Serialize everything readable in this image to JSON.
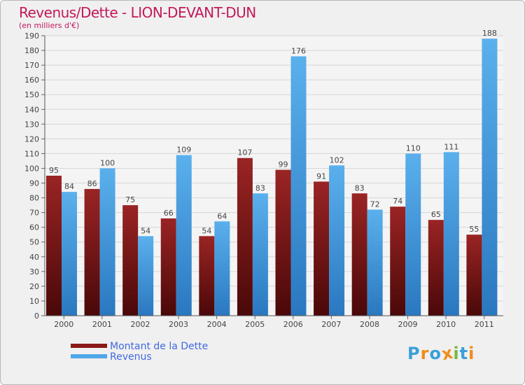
{
  "header": {
    "title": "Revenus/Dette - LION-DEVANT-DUN",
    "subtitle": "(en milliers d'€)"
  },
  "legend": [
    {
      "label": "Montant de la Dette",
      "color": "#8b1a1a"
    },
    {
      "label": "Revenus",
      "color": "#4fa8e8"
    }
  ],
  "logo": {
    "text": "Proxiti",
    "letters": [
      {
        "char": "P",
        "color": "#3aa0d8"
      },
      {
        "char": "r",
        "color": "#f08c1a"
      },
      {
        "char": "o",
        "color": "#3aa0d8"
      },
      {
        "char": "x",
        "color": "#f08c1a"
      },
      {
        "char": "i",
        "color": "#7ab648"
      },
      {
        "char": "t",
        "color": "#3aa0d8"
      },
      {
        "char": "i",
        "color": "#f08c1a"
      }
    ]
  },
  "chart_data": {
    "type": "bar",
    "categories": [
      "2000",
      "2001",
      "2002",
      "2003",
      "2004",
      "2005",
      "2006",
      "2007",
      "2008",
      "2009",
      "2010",
      "2011"
    ],
    "series": [
      {
        "name": "Montant de la Dette",
        "color": "#8b1a1a",
        "values": [
          95,
          86,
          75,
          66,
          54,
          107,
          99,
          91,
          83,
          74,
          65,
          55
        ]
      },
      {
        "name": "Revenus",
        "color": "#4fa8e8",
        "values": [
          84,
          100,
          54,
          109,
          64,
          83,
          176,
          102,
          72,
          110,
          111,
          188
        ]
      }
    ],
    "ylim": [
      0,
      190
    ],
    "ytick_step": 10,
    "grid": true,
    "legend_position": "bottom-left"
  }
}
